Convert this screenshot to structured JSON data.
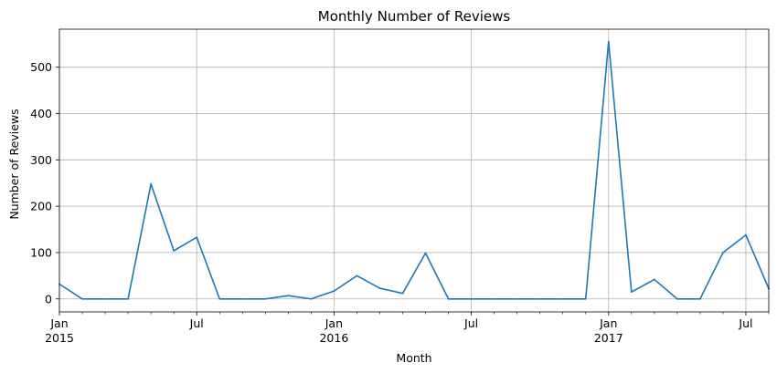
{
  "chart_data": {
    "type": "line",
    "title": "Monthly Number of Reviews",
    "xlabel": "Month",
    "ylabel": "Number of Reviews",
    "ylim": [
      -28,
      582
    ],
    "xlim": [
      "2015-01",
      "2017-08"
    ],
    "yticks": [
      0,
      100,
      200,
      300,
      400,
      500
    ],
    "grid": true,
    "x_major_ticks": [
      {
        "month": "2015-01",
        "label": "Jan",
        "sublabel": "2015"
      },
      {
        "month": "2015-07",
        "label": "Jul",
        "sublabel": ""
      },
      {
        "month": "2016-01",
        "label": "Jan",
        "sublabel": "2016"
      },
      {
        "month": "2016-07",
        "label": "Jul",
        "sublabel": ""
      },
      {
        "month": "2017-01",
        "label": "Jan",
        "sublabel": "2017"
      },
      {
        "month": "2017-07",
        "label": "Jul",
        "sublabel": ""
      }
    ],
    "series": [
      {
        "color": "#1f77b4",
        "x": [
          "2015-01",
          "2015-02",
          "2015-03",
          "2015-04",
          "2015-05",
          "2015-06",
          "2015-07",
          "2015-08",
          "2015-09",
          "2015-10",
          "2015-11",
          "2015-12",
          "2016-01",
          "2016-02",
          "2016-03",
          "2016-04",
          "2016-05",
          "2016-06",
          "2016-07",
          "2016-08",
          "2016-09",
          "2016-10",
          "2016-11",
          "2016-12",
          "2017-01",
          "2017-02",
          "2017-03",
          "2017-04",
          "2017-05",
          "2017-06",
          "2017-07",
          "2017-08"
        ],
        "values": [
          32,
          0,
          0,
          0,
          248,
          104,
          133,
          0,
          0,
          0,
          7,
          0,
          17,
          50,
          23,
          12,
          99,
          0,
          0,
          0,
          0,
          0,
          0,
          0,
          555,
          15,
          42,
          0,
          0,
          100,
          138,
          22
        ]
      }
    ]
  }
}
